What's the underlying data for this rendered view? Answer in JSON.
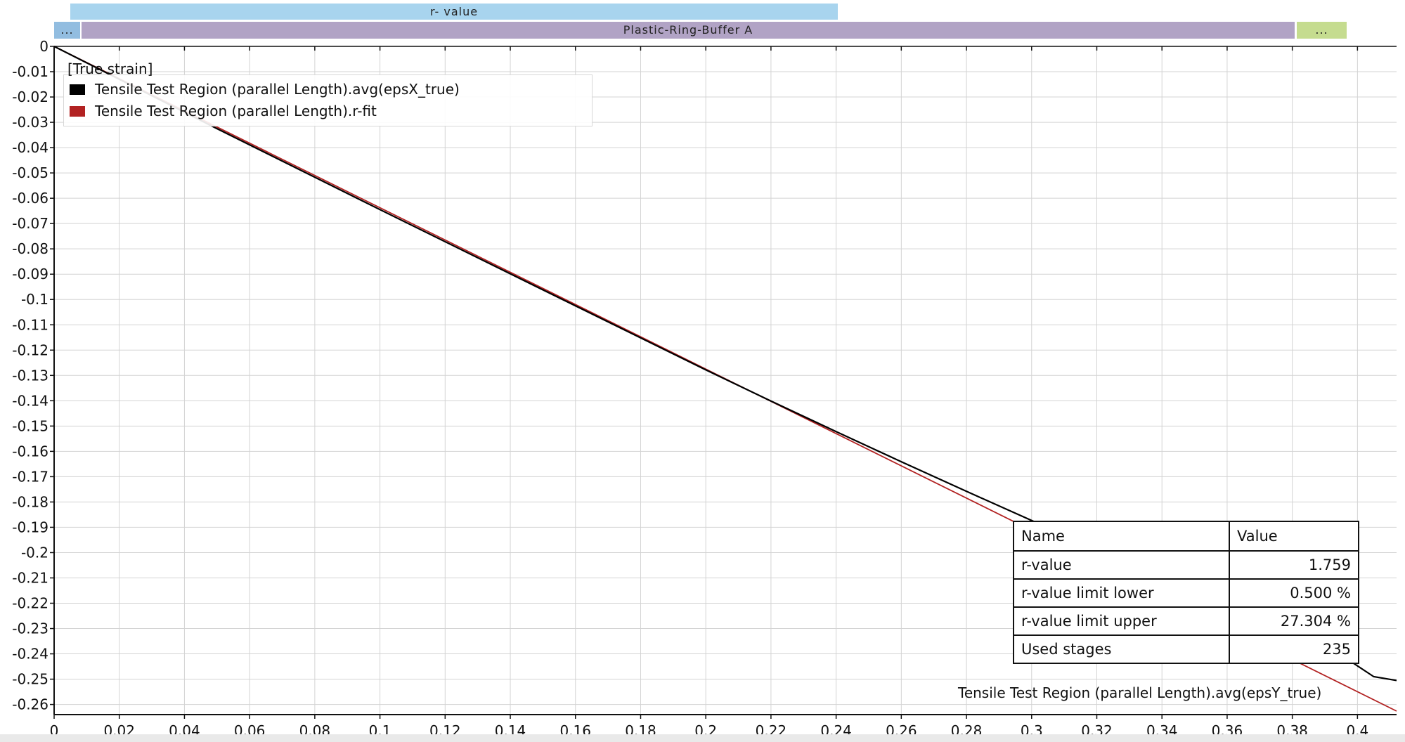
{
  "top_bars": {
    "r_value_label": "r- value",
    "buffer_label": "Plastic-Ring-Buffer A",
    "left_dots": "...",
    "right_dots": "..."
  },
  "colors": {
    "r_value_bar": "#a8d4ee",
    "buffer_bar": "#b1a3c5",
    "left_segment": "#92bde0",
    "right_segment": "#c5dc8f",
    "series_eps_x": "#000000",
    "series_fit": "#b22222"
  },
  "legend": {
    "title": "[True strain]",
    "items": [
      {
        "label": "Tensile Test Region (parallel Length).avg(epsX_true)",
        "color": "#000000"
      },
      {
        "label": "Tensile Test Region (parallel Length).r-fit",
        "color": "#b22222"
      }
    ]
  },
  "results_table": {
    "header": {
      "name": "Name",
      "value": "Value"
    },
    "rows": [
      {
        "name": "r-value",
        "value": "1.759"
      },
      {
        "name": "r-value limit lower",
        "value": "0.500 %"
      },
      {
        "name": "r-value limit upper",
        "value": "27.304 %"
      },
      {
        "name": "Used stages",
        "value": "235"
      }
    ]
  },
  "end_label": "Tensile Test Region (parallel Length).avg(epsY_true)",
  "chart_data": {
    "type": "line",
    "x_ticks": [
      "0",
      "0.02",
      "0.04",
      "0.06",
      "0.08",
      "0.1",
      "0.12",
      "0.14",
      "0.16",
      "0.18",
      "0.2",
      "0.22",
      "0.24",
      "0.26",
      "0.28",
      "0.3",
      "0.32",
      "0.34",
      "0.36",
      "0.38",
      "0.4"
    ],
    "y_ticks": [
      "0",
      "-0.01",
      "-0.02",
      "-0.03",
      "-0.04",
      "-0.05",
      "-0.06",
      "-0.07",
      "-0.08",
      "-0.09",
      "-0.1",
      "-0.11",
      "-0.12",
      "-0.13",
      "-0.14",
      "-0.15",
      "-0.16",
      "-0.17",
      "-0.18",
      "-0.19",
      "-0.2",
      "-0.21",
      "-0.22",
      "-0.23",
      "-0.24",
      "-0.25",
      "-0.26"
    ],
    "xlim": [
      0,
      0.412
    ],
    "ylim": [
      -0.264,
      0
    ],
    "grid": true,
    "series": [
      {
        "name": "Tensile Test Region (parallel Length).avg(epsX_true)",
        "color": "#000000",
        "x": [
          0,
          0.05,
          0.1,
          0.15,
          0.2,
          0.22,
          0.24,
          0.26,
          0.28,
          0.3,
          0.32,
          0.34,
          0.36,
          0.38,
          0.395,
          0.405,
          0.412
        ],
        "y": [
          0,
          -0.0325,
          -0.0645,
          -0.0962,
          -0.1278,
          -0.1401,
          -0.1522,
          -0.1641,
          -0.1758,
          -0.1873,
          -0.1985,
          -0.2095,
          -0.2203,
          -0.2305,
          -0.2405,
          -0.249,
          -0.2505
        ]
      },
      {
        "name": "Tensile Test Region (parallel Length).r-fit",
        "color": "#b22222",
        "x": [
          0,
          0.412
        ],
        "y": [
          0,
          -0.2626
        ]
      }
    ]
  }
}
